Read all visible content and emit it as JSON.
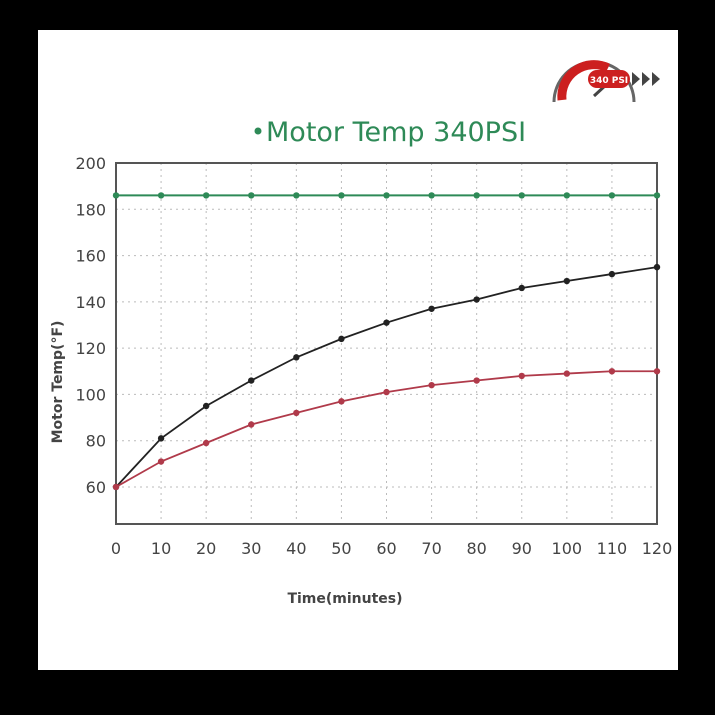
{
  "chart_data": {
    "type": "line",
    "title": "Motor Temp 340PSI",
    "xlabel": "Time(minutes)",
    "ylabel": "Motor Temp(°F)",
    "x": [
      0,
      10,
      20,
      30,
      40,
      50,
      60,
      70,
      80,
      90,
      100,
      110,
      120
    ],
    "xticks": [
      "0",
      "10",
      "20",
      "30",
      "40",
      "50",
      "60",
      "70",
      "80",
      "90",
      "100",
      "110",
      "120"
    ],
    "yticks": [
      "60",
      "80",
      "100",
      "120",
      "140",
      "160",
      "180",
      "200"
    ],
    "xlim": [
      0,
      120
    ],
    "ylim": [
      44,
      200
    ],
    "grid": true,
    "series": [
      {
        "name": "Motor Temp 340PSI",
        "color": "#2e8a57",
        "values": [
          186,
          186,
          186,
          186,
          186,
          186,
          186,
          186,
          186,
          186,
          186,
          186,
          186
        ]
      },
      {
        "color": "#222222",
        "values": [
          60,
          81,
          95,
          106,
          116,
          124,
          131,
          137,
          141,
          146,
          149,
          152,
          155
        ]
      },
      {
        "color": "#b03a4a",
        "values": [
          60,
          71,
          79,
          87,
          92,
          97,
          101,
          104,
          106,
          108,
          109,
          110,
          110
        ]
      }
    ]
  },
  "logo": {
    "text": "340 PSI",
    "accent": "#cc1f1f"
  }
}
